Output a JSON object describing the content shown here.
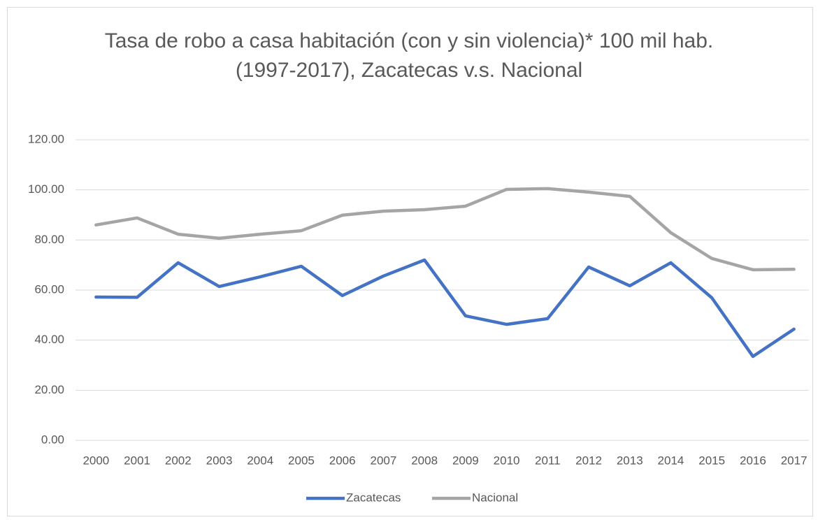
{
  "chart_data": {
    "type": "line",
    "title": "Tasa de robo a casa habitación (con y sin violencia)* 100 mil hab. (1997-2017), Zacatecas v.s. Nacional",
    "categories": [
      "2000",
      "2001",
      "2002",
      "2003",
      "2004",
      "2005",
      "2006",
      "2007",
      "2008",
      "2009",
      "2010",
      "2011",
      "2012",
      "2013",
      "2014",
      "2015",
      "2016",
      "2017"
    ],
    "series": [
      {
        "name": "Zacatecas",
        "color": "#4472c4",
        "values": [
          57.2,
          57.1,
          70.9,
          61.4,
          65.3,
          69.5,
          57.8,
          65.6,
          72.0,
          49.7,
          46.3,
          48.6,
          69.2,
          61.7,
          70.9,
          56.9,
          33.5,
          44.4
        ]
      },
      {
        "name": "Nacional",
        "color": "#a5a5a5",
        "values": [
          86.0,
          88.8,
          82.3,
          80.7,
          82.3,
          83.7,
          89.9,
          91.5,
          92.1,
          93.5,
          100.2,
          100.5,
          99.1,
          97.4,
          82.9,
          72.6,
          68.1,
          68.3
        ]
      }
    ],
    "ylim": [
      0,
      120
    ],
    "yticks": [
      {
        "value": 0,
        "label": "0.00"
      },
      {
        "value": 20,
        "label": "20.00"
      },
      {
        "value": 40,
        "label": "40.00"
      },
      {
        "value": 60,
        "label": "60.00"
      },
      {
        "value": 80,
        "label": "80.00"
      },
      {
        "value": 100,
        "label": "100.00"
      },
      {
        "value": 120,
        "label": "120.00"
      }
    ],
    "grid": true,
    "legend": "bottom"
  }
}
